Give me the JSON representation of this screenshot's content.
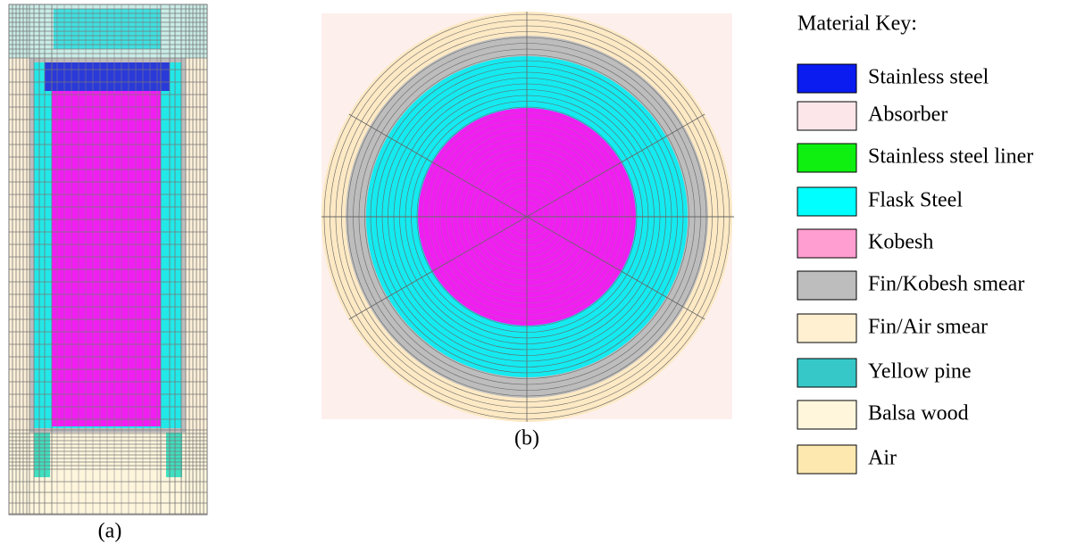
{
  "panels": [
    {
      "caption": "(a)"
    },
    {
      "caption": "(b)"
    }
  ],
  "legend": {
    "title": "Material Key:",
    "items": [
      {
        "label": "Stainless steel",
        "color": "#0a1cf0"
      },
      {
        "label": "Absorber",
        "color": "#fde6ea"
      },
      {
        "label": "Stainless steel liner",
        "color": "#10f010"
      },
      {
        "label": "Flask Steel",
        "color": "#00ffff"
      },
      {
        "label": "Kobesh",
        "color": "#ff9ed0"
      },
      {
        "label": "Fin/Kobesh smear",
        "color": "#bdbdbd"
      },
      {
        "label": "Fin/Air smear",
        "color": "#fff0d2"
      },
      {
        "label": "Yellow pine",
        "color": "#36c8c8"
      },
      {
        "label": "Balsa wood",
        "color": "#fff6dc"
      },
      {
        "label": "Air",
        "color": "#fde9b0"
      }
    ]
  }
}
